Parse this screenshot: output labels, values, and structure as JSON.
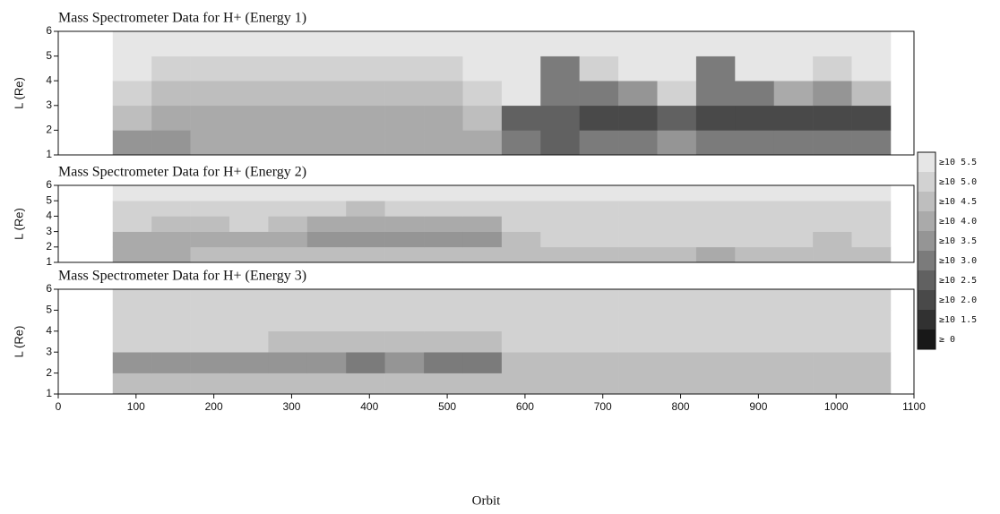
{
  "chart_data": [
    {
      "type": "heatmap",
      "title": "Mass Spectrometer Data for H+  (Energy 1)",
      "y_label": "L (Re)",
      "xlim": [
        0,
        1100
      ],
      "ylim": [
        1,
        6
      ],
      "yticks": [
        1,
        2,
        3,
        4,
        5,
        6
      ],
      "xbins": [
        70,
        120,
        170,
        220,
        270,
        320,
        370,
        420,
        470,
        520,
        570,
        620,
        670,
        720,
        770,
        820,
        870,
        920,
        970,
        1020,
        1070
      ],
      "ybins": [
        1,
        2,
        3,
        4,
        5,
        6
      ],
      "z": [
        [
          3.5,
          3.5,
          4.0,
          4.0,
          4.0,
          4.0,
          4.0,
          4.0,
          4.0,
          4.0,
          3.0,
          2.5,
          3.0,
          3.0,
          3.5,
          3.0,
          3.0,
          3.0,
          3.0,
          3.0
        ],
        [
          4.5,
          4.0,
          4.0,
          4.0,
          4.0,
          4.0,
          4.0,
          4.0,
          4.0,
          4.5,
          2.5,
          2.5,
          2.0,
          2.0,
          2.5,
          2.0,
          2.0,
          2.0,
          2.0,
          2.0
        ],
        [
          5.0,
          4.5,
          4.5,
          4.5,
          4.5,
          4.5,
          4.5,
          4.5,
          4.5,
          5.0,
          5.5,
          3.0,
          3.0,
          3.5,
          5.0,
          3.0,
          3.0,
          4.0,
          3.5,
          4.5
        ],
        [
          5.5,
          5.0,
          5.0,
          5.0,
          5.0,
          5.0,
          5.0,
          5.0,
          5.0,
          5.5,
          5.5,
          3.0,
          5.0,
          5.5,
          5.5,
          3.0,
          5.5,
          5.5,
          5.0,
          5.5
        ],
        [
          5.5,
          5.5,
          5.5,
          5.5,
          5.5,
          5.5,
          5.5,
          5.5,
          5.5,
          5.5,
          5.5,
          5.5,
          5.5,
          5.5,
          5.5,
          5.5,
          5.5,
          5.5,
          5.5,
          5.5
        ]
      ]
    },
    {
      "type": "heatmap",
      "title": "Mass Spectrometer Data for H+  (Energy 2)",
      "y_label": "L (Re)",
      "xlim": [
        0,
        1100
      ],
      "ylim": [
        1,
        6
      ],
      "yticks": [
        1,
        2,
        3,
        4,
        5,
        6
      ],
      "xbins": [
        70,
        120,
        170,
        220,
        270,
        320,
        370,
        420,
        470,
        520,
        570,
        620,
        670,
        720,
        770,
        820,
        870,
        920,
        970,
        1020,
        1070
      ],
      "ybins": [
        1,
        2,
        3,
        4,
        5,
        6
      ],
      "z": [
        [
          4.0,
          4.0,
          4.5,
          4.5,
          4.5,
          4.5,
          4.5,
          4.5,
          4.5,
          4.5,
          4.5,
          4.5,
          4.5,
          4.5,
          4.5,
          4.0,
          4.5,
          4.5,
          4.5,
          4.5
        ],
        [
          4.0,
          4.0,
          4.0,
          4.0,
          4.0,
          3.5,
          3.5,
          3.5,
          3.5,
          3.5,
          4.5,
          5.0,
          5.0,
          5.0,
          5.0,
          5.0,
          5.0,
          5.0,
          4.5,
          5.0
        ],
        [
          5.0,
          4.5,
          4.5,
          5.0,
          4.5,
          4.0,
          4.0,
          4.0,
          4.0,
          4.0,
          5.0,
          5.0,
          5.0,
          5.0,
          5.0,
          5.0,
          5.0,
          5.0,
          5.0,
          5.0
        ],
        [
          5.0,
          5.0,
          5.0,
          5.0,
          5.0,
          5.0,
          4.5,
          5.0,
          5.0,
          5.0,
          5.0,
          5.0,
          5.0,
          5.0,
          5.0,
          5.0,
          5.0,
          5.0,
          5.0,
          5.0
        ],
        [
          5.5,
          5.5,
          5.5,
          5.5,
          5.5,
          5.5,
          5.5,
          5.5,
          5.5,
          5.5,
          5.5,
          5.5,
          5.5,
          5.5,
          5.5,
          5.5,
          5.5,
          5.5,
          5.5,
          5.5
        ]
      ]
    },
    {
      "type": "heatmap",
      "title": "Mass Spectrometer Data for H+  (Energy 3)",
      "y_label": "L (Re)",
      "x_label": "Orbit",
      "xlim": [
        0,
        1100
      ],
      "ylim": [
        1,
        6
      ],
      "yticks": [
        1,
        2,
        3,
        4,
        5,
        6
      ],
      "xticks": [
        0,
        100,
        200,
        300,
        400,
        500,
        600,
        700,
        800,
        900,
        1000,
        1100
      ],
      "xbins": [
        70,
        120,
        170,
        220,
        270,
        320,
        370,
        420,
        470,
        520,
        570,
        620,
        670,
        720,
        770,
        820,
        870,
        920,
        970,
        1020,
        1070
      ],
      "ybins": [
        1,
        2,
        3,
        4,
        5,
        6
      ],
      "z": [
        [
          4.5,
          4.5,
          4.5,
          4.5,
          4.5,
          4.5,
          4.5,
          4.5,
          4.5,
          4.5,
          4.5,
          4.5,
          4.5,
          4.5,
          4.5,
          4.5,
          4.5,
          4.5,
          4.5,
          4.5
        ],
        [
          3.5,
          3.5,
          3.5,
          3.5,
          3.5,
          3.5,
          3.0,
          3.5,
          3.0,
          3.0,
          4.5,
          4.5,
          4.5,
          4.5,
          4.5,
          4.5,
          4.5,
          4.5,
          4.5,
          4.5
        ],
        [
          5.0,
          5.0,
          5.0,
          5.0,
          4.5,
          4.5,
          4.5,
          4.5,
          4.5,
          4.5,
          5.0,
          5.0,
          5.0,
          5.0,
          5.0,
          5.0,
          5.0,
          5.0,
          5.0,
          5.0
        ],
        [
          5.0,
          5.0,
          5.0,
          5.0,
          5.0,
          5.0,
          5.0,
          5.0,
          5.0,
          5.0,
          5.0,
          5.0,
          5.0,
          5.0,
          5.0,
          5.0,
          5.0,
          5.0,
          5.0,
          5.0
        ],
        [
          5.0,
          5.0,
          5.0,
          5.0,
          5.0,
          5.0,
          5.0,
          5.0,
          5.0,
          5.0,
          5.0,
          5.0,
          5.0,
          5.0,
          5.0,
          5.0,
          5.0,
          5.0,
          5.0,
          5.0
        ]
      ]
    }
  ],
  "colorbar": {
    "levels": [
      {
        "value": 5.5,
        "label": "≥10 5.5",
        "color": "#e6e6e6"
      },
      {
        "value": 5.0,
        "label": "≥10 5.0",
        "color": "#d2d2d2"
      },
      {
        "value": 4.5,
        "label": "≥10 4.5",
        "color": "#bebebe"
      },
      {
        "value": 4.0,
        "label": "≥10 4.0",
        "color": "#aaaaaa"
      },
      {
        "value": 3.5,
        "label": "≥10 3.5",
        "color": "#959595"
      },
      {
        "value": 3.0,
        "label": "≥10 3.0",
        "color": "#7b7b7b"
      },
      {
        "value": 2.5,
        "label": "≥10 2.5",
        "color": "#616161"
      },
      {
        "value": 2.0,
        "label": "≥10 2.0",
        "color": "#494949"
      },
      {
        "value": 1.5,
        "label": "≥10 1.5",
        "color": "#313131"
      },
      {
        "value": 0,
        "label": "≥ 0",
        "color": "#181818"
      }
    ]
  }
}
